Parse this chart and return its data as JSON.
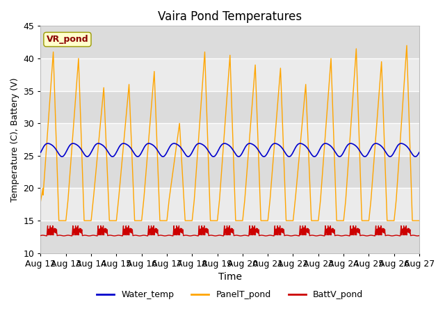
{
  "title": "Vaira Pond Temperatures",
  "xlabel": "Time",
  "ylabel": "Temperature (C), Battery (V)",
  "ylim": [
    10,
    45
  ],
  "annotation_text": "VR_pond",
  "annotation_color": "#8B0000",
  "annotation_bg": "#FFFFCC",
  "water_temp_color": "#0000CC",
  "panel_temp_color": "#FFA500",
  "batt_color": "#CC0000",
  "plot_bg_color": "#EBEBEB",
  "band_colors": [
    "#DCDCDC",
    "#EBEBEB"
  ],
  "fig_bg_color": "#FFFFFF",
  "legend_labels": [
    "Water_temp",
    "PanelT_pond",
    "BattV_pond"
  ],
  "x_tick_labels": [
    "Aug 12",
    "Aug 13",
    "Aug 14",
    "Aug 15",
    "Aug 16",
    "Aug 17",
    "Aug 18",
    "Aug 19",
    "Aug 20",
    "Aug 21",
    "Aug 22",
    "Aug 23",
    "Aug 24",
    "Aug 25",
    "Aug 26",
    "Aug 27"
  ],
  "yticks": [
    10,
    15,
    20,
    25,
    30,
    35,
    40,
    45
  ],
  "panel_day_peaks": [
    41,
    40,
    35.5,
    36,
    38,
    30,
    41,
    40.5,
    39,
    38.5,
    36,
    40,
    41.5,
    39.5,
    42
  ],
  "panel_night_min": 15,
  "water_base": 26.0,
  "batt_base": 12.8,
  "batt_spike": 14.0
}
